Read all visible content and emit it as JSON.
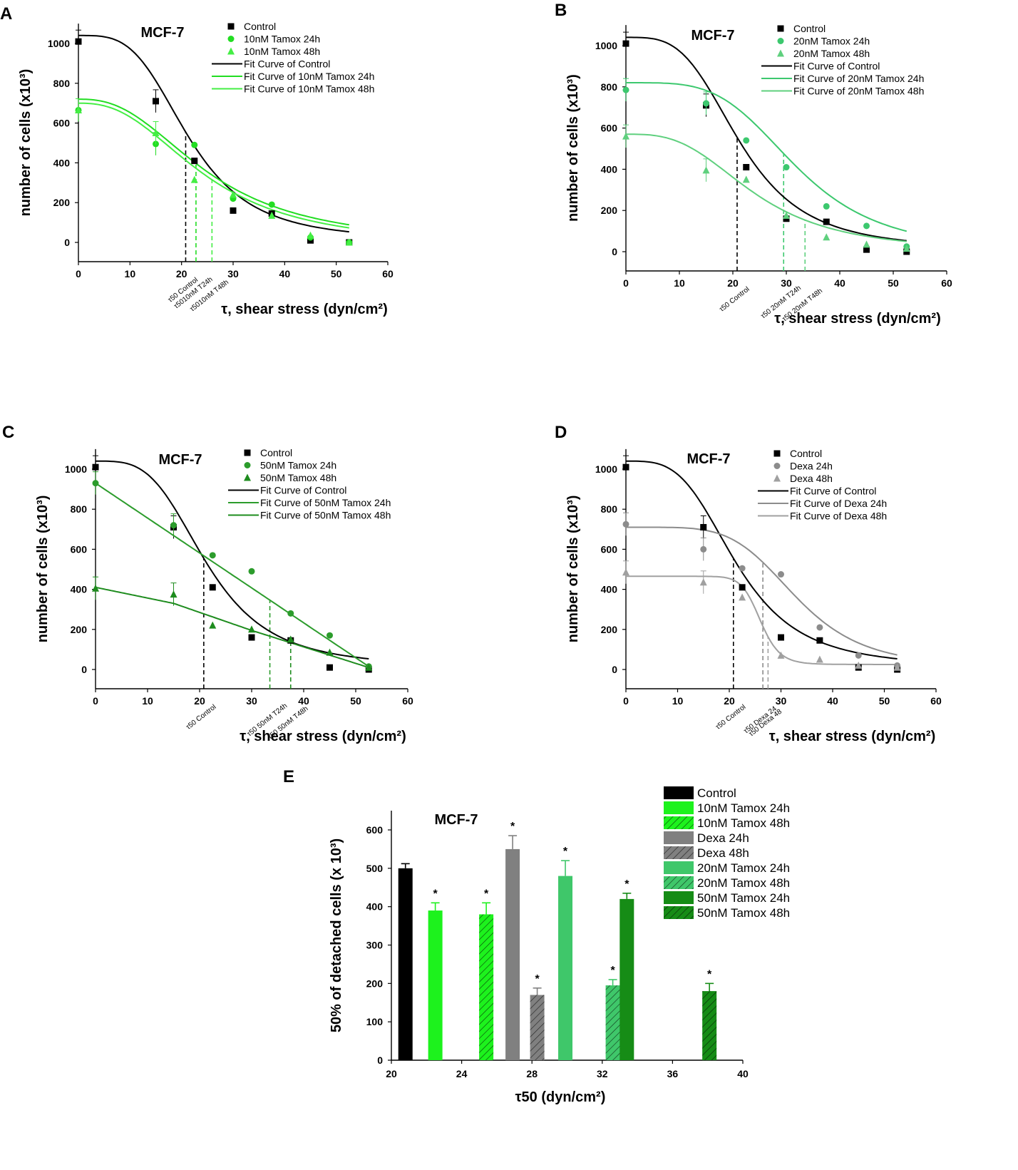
{
  "figure": {
    "panels": [
      {
        "letter": "A",
        "title": "MCF-7",
        "xlabel": "τ, shear stress (dyn/cm²)",
        "ylabel": "number of cells (x10³)",
        "legend": [
          "Control",
          "10nM Tamox 24h",
          "10nM Tamox 48h",
          "Fit Curve of Control",
          "Fit Curve of 10nM Tamox 24h",
          "Fit Curve of 10nM Tamox 48h"
        ],
        "annotations": [
          "τ50 Control",
          "τ5010nM T24h",
          "τ5010nM T48h"
        ]
      },
      {
        "letter": "B",
        "title": "MCF-7",
        "xlabel": "τ, shear stress (dyn/cm²)",
        "ylabel": "number of cells (x10³)",
        "legend": [
          "Control",
          "20nM Tamox 24h",
          "20nM Tamox 48h",
          "Fit Curve of Control",
          "Fit Curve of 20nM Tamox 24h",
          "Fit Curve of 20nM Tamox 48h"
        ],
        "annotations": [
          "τ50 Control",
          "τ50 20nM T24h",
          "τ50 20nM T48h"
        ]
      },
      {
        "letter": "C",
        "title": "MCF-7",
        "xlabel": "τ, shear stress (dyn/cm²)",
        "ylabel": "number of cells (x10³)",
        "legend": [
          "Control",
          "50nM Tamox 24h",
          "50nM Tamox 48h",
          "Fit Curve of Control",
          "Fit Curve of 50nM Tamox 24h",
          "Fit Curve of 50nM Tamox 48h"
        ],
        "annotations": [
          "τ50 Control",
          "τ50 50nM T24h",
          "τ50 50nM T48h"
        ]
      },
      {
        "letter": "D",
        "title": "MCF-7",
        "xlabel": "τ, shear stress (dyn/cm²)",
        "ylabel": "number of cells (x10³)",
        "legend": [
          "Control",
          "Dexa 24h",
          "Dexa 48h",
          "Fit Curve of Control",
          "Fit Curve of Dexa 24h",
          "Fit Curve of Dexa 48h"
        ],
        "annotations": [
          "τ50 Control",
          "τ50 Dexa 24",
          "τ50 Dexa 48"
        ]
      }
    ],
    "panelE": {
      "letter": "E",
      "title": "MCF-7",
      "xlabel": "τ50 (dyn/cm²)",
      "ylabel": "50% of detached cells (x 10³)",
      "star": "*"
    }
  },
  "chart_data": [
    {
      "type": "scatter",
      "panel": "A",
      "xlim": [
        0,
        60
      ],
      "ylim": [
        -100,
        1100
      ],
      "xticks": [
        0,
        10,
        20,
        30,
        40,
        50,
        60
      ],
      "yticks": [
        0,
        200,
        400,
        600,
        800,
        1000
      ],
      "series": [
        {
          "name": "Control",
          "color": "#000000",
          "marker": "square",
          "x": [
            0,
            15,
            22.5,
            30,
            37.5,
            45,
            52.5
          ],
          "y": [
            1010,
            710,
            410,
            160,
            145,
            10,
            0
          ]
        },
        {
          "name": "10nM Tamox 24h",
          "color": "#22dd22",
          "marker": "circle",
          "x": [
            0,
            15,
            22.5,
            30,
            37.5,
            45,
            52.5
          ],
          "y": [
            665,
            495,
            490,
            220,
            190,
            25,
            0
          ]
        },
        {
          "name": "10nM Tamox 48h",
          "color": "#44ee44",
          "marker": "triangle",
          "x": [
            0,
            15,
            22.5,
            30,
            37.5,
            45,
            52.5
          ],
          "y": [
            665,
            550,
            315,
            240,
            135,
            35,
            0
          ]
        }
      ],
      "fits": [
        {
          "name": "Fit Curve of Control",
          "color": "#000000",
          "top": 1040,
          "bottom": 10,
          "x0": 21.5,
          "p": 3.5
        },
        {
          "name": "Fit Curve of 10nM Tamox 24h",
          "color": "#22dd22",
          "top": 720,
          "bottom": -10,
          "x0": 25,
          "p": 2.5
        },
        {
          "name": "Fit Curve of 10nM Tamox 48h",
          "color": "#44ee44",
          "top": 700,
          "bottom": -20,
          "x0": 24.5,
          "p": 2.5
        }
      ],
      "tau50": [
        {
          "x": 20.8,
          "color": "#000000"
        },
        {
          "x": 22.8,
          "color": "#22dd22"
        },
        {
          "x": 25.9,
          "color": "#44ee44"
        }
      ]
    },
    {
      "type": "scatter",
      "panel": "B",
      "xlim": [
        0,
        60
      ],
      "ylim": [
        -100,
        1100
      ],
      "xticks": [
        0,
        10,
        20,
        30,
        40,
        50,
        60
      ],
      "yticks": [
        0,
        200,
        400,
        600,
        800,
        1000
      ],
      "series": [
        {
          "name": "Control",
          "color": "#000000",
          "marker": "square",
          "x": [
            0,
            15,
            22.5,
            30,
            37.5,
            45,
            52.5
          ],
          "y": [
            1010,
            710,
            410,
            160,
            145,
            10,
            0
          ]
        },
        {
          "name": "20nM Tamox 24h",
          "color": "#3cc86e",
          "marker": "circle",
          "x": [
            0,
            15,
            22.5,
            30,
            37.5,
            45,
            52.5
          ],
          "y": [
            785,
            720,
            540,
            410,
            220,
            125,
            25
          ]
        },
        {
          "name": "20nM Tamox 48h",
          "color": "#5fd07e",
          "marker": "triangle",
          "x": [
            0,
            15,
            22.5,
            30,
            37.5,
            45,
            52.5
          ],
          "y": [
            560,
            395,
            350,
            175,
            70,
            35,
            15
          ]
        }
      ],
      "fits": [
        {
          "name": "Fit Curve of Control",
          "color": "#000000",
          "top": 1040,
          "bottom": 10,
          "x0": 21.5,
          "p": 3.5
        },
        {
          "name": "Fit Curve of 20nM Tamox 24h",
          "color": "#3cc86e",
          "top": 820,
          "bottom": 0,
          "x0": 32,
          "p": 4
        },
        {
          "name": "Fit Curve of 20nM Tamox 48h",
          "color": "#5fd07e",
          "top": 570,
          "bottom": 0,
          "x0": 24,
          "p": 3
        }
      ],
      "tau50": [
        {
          "x": 20.8,
          "color": "#000000"
        },
        {
          "x": 29.5,
          "color": "#3cc86e"
        },
        {
          "x": 33.5,
          "color": "#5fd07e"
        }
      ]
    },
    {
      "type": "scatter",
      "panel": "C",
      "xlim": [
        0,
        60
      ],
      "ylim": [
        -100,
        1100
      ],
      "xticks": [
        0,
        10,
        20,
        30,
        40,
        50,
        60
      ],
      "yticks": [
        0,
        200,
        400,
        600,
        800,
        1000
      ],
      "series": [
        {
          "name": "Control",
          "color": "#000000",
          "marker": "square",
          "x": [
            0,
            15,
            22.5,
            30,
            37.5,
            45,
            52.5
          ],
          "y": [
            1010,
            710,
            410,
            160,
            145,
            10,
            0
          ]
        },
        {
          "name": "50nM Tamox 24h",
          "color": "#2c9c2c",
          "marker": "circle",
          "x": [
            0,
            15,
            22.5,
            30,
            37.5,
            45,
            52.5
          ],
          "y": [
            930,
            720,
            570,
            490,
            280,
            170,
            15
          ]
        },
        {
          "name": "50nM Tamox 48h",
          "color": "#1e8c1e",
          "marker": "triangle",
          "x": [
            0,
            15,
            22.5,
            30,
            37.5,
            45,
            52.5
          ],
          "y": [
            405,
            375,
            220,
            200,
            150,
            85,
            10
          ]
        }
      ],
      "fits": [
        {
          "name": "Fit Curve of Control",
          "color": "#000000",
          "top": 1040,
          "bottom": 10,
          "x0": 21.5,
          "p": 3.5
        },
        {
          "name": "Fit Curve of 50nM Tamox 24h",
          "color": "#2c9c2c",
          "linear": [
            [
              0,
              930
            ],
            [
              52.5,
              15
            ]
          ]
        },
        {
          "name": "Fit Curve of 50nM Tamox 48h",
          "color": "#1e8c1e",
          "linear": [
            [
              0,
              410
            ],
            [
              15,
              330
            ],
            [
              30,
              195
            ],
            [
              52.5,
              10
            ]
          ]
        }
      ],
      "tau50": [
        {
          "x": 20.8,
          "color": "#000000"
        },
        {
          "x": 33.5,
          "color": "#2c9c2c"
        },
        {
          "x": 37.5,
          "color": "#1e8c1e"
        }
      ]
    },
    {
      "type": "scatter",
      "panel": "D",
      "xlim": [
        0,
        60
      ],
      "ylim": [
        -100,
        1100
      ],
      "xticks": [
        0,
        10,
        20,
        30,
        40,
        50,
        60
      ],
      "yticks": [
        0,
        200,
        400,
        600,
        800,
        1000
      ],
      "series": [
        {
          "name": "Control",
          "color": "#000000",
          "marker": "square",
          "x": [
            0,
            15,
            22.5,
            30,
            37.5,
            45,
            52.5
          ],
          "y": [
            1010,
            710,
            410,
            160,
            145,
            10,
            0
          ]
        },
        {
          "name": "Dexa 24h",
          "color": "#8c8c8c",
          "marker": "circle",
          "x": [
            0,
            15,
            22.5,
            30,
            37.5,
            45,
            52.5
          ],
          "y": [
            725,
            600,
            505,
            475,
            210,
            70,
            20
          ]
        },
        {
          "name": "Dexa 48h",
          "color": "#a0a0a0",
          "marker": "triangle",
          "x": [
            0,
            15,
            22.5,
            30,
            37.5,
            45,
            52.5
          ],
          "y": [
            485,
            435,
            360,
            70,
            50,
            20,
            10
          ]
        }
      ],
      "fits": [
        {
          "name": "Fit Curve of Control",
          "color": "#000000",
          "top": 1040,
          "bottom": 10,
          "x0": 21.5,
          "p": 3.5
        },
        {
          "name": "Fit Curve of Dexa 24h",
          "color": "#8c8c8c",
          "top": 710,
          "bottom": 10,
          "x0": 33,
          "p": 5
        },
        {
          "name": "Fit Curve of Dexa 48h",
          "color": "#a0a0a0",
          "top": 465,
          "bottom": 25,
          "x0": 26,
          "p": 14
        }
      ],
      "tau50": [
        {
          "x": 20.8,
          "color": "#000000"
        },
        {
          "x": 26.5,
          "color": "#8c8c8c"
        },
        {
          "x": 27.5,
          "color": "#a0a0a0"
        }
      ]
    },
    {
      "type": "bar",
      "panel": "E",
      "xlim": [
        20,
        40
      ],
      "ylim": [
        0,
        650
      ],
      "xticks": [
        20,
        24,
        28,
        32,
        36,
        40
      ],
      "yticks": [
        0,
        100,
        200,
        300,
        400,
        500,
        600
      ],
      "bars": [
        {
          "name": "Control",
          "x": 20.8,
          "value": 500,
          "err": 12,
          "color": "#000000",
          "hatch": false,
          "sig": false
        },
        {
          "name": "10nM Tamox 24h",
          "x": 22.5,
          "value": 390,
          "err": 20,
          "color": "#1df21d",
          "hatch": false,
          "sig": true
        },
        {
          "name": "10nM Tamox 48h",
          "x": 25.4,
          "value": 380,
          "err": 30,
          "color": "#1df21d",
          "hatch": true,
          "sig": true
        },
        {
          "name": "Dexa 24h",
          "x": 26.9,
          "value": 550,
          "err": 35,
          "color": "#808080",
          "hatch": false,
          "sig": true
        },
        {
          "name": "Dexa 48h",
          "x": 28.3,
          "value": 170,
          "err": 18,
          "color": "#808080",
          "hatch": true,
          "sig": true
        },
        {
          "name": "20nM Tamox 24h",
          "x": 29.9,
          "value": 480,
          "err": 40,
          "color": "#3fc76a",
          "hatch": false,
          "sig": true
        },
        {
          "name": "20nM Tamox 48h",
          "x": 32.6,
          "value": 195,
          "err": 15,
          "color": "#3fc76a",
          "hatch": true,
          "sig": true
        },
        {
          "name": "50nM Tamox 24h",
          "x": 33.4,
          "value": 420,
          "err": 15,
          "color": "#168c16",
          "hatch": false,
          "sig": true
        },
        {
          "name": "50nM Tamox 48h",
          "x": 38.1,
          "value": 180,
          "err": 20,
          "color": "#168c16",
          "hatch": true,
          "sig": true
        }
      ]
    }
  ]
}
